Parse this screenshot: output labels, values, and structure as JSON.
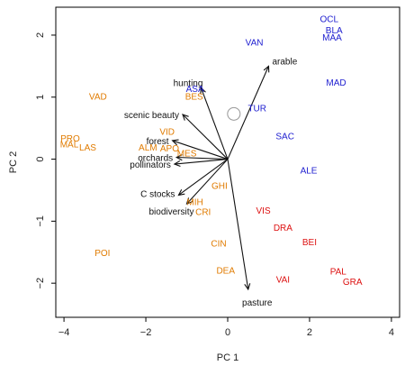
{
  "chart_data": {
    "type": "scatter",
    "xlabel": "PC 1",
    "ylabel": "PC 2",
    "xlim": [
      -4.2,
      4.2
    ],
    "ylim": [
      -2.55,
      2.45
    ],
    "xticks": [
      -4,
      -2,
      0,
      2,
      4
    ],
    "yticks": [
      -2,
      -1,
      0,
      1,
      2
    ],
    "grid": false,
    "colors": {
      "orange": "#e07b00",
      "blue": "#2020d0",
      "red": "#dd1111",
      "arrow": "#111111",
      "circle": "#999999"
    },
    "points": [
      {
        "label": "OCL",
        "x": 2.48,
        "y": 2.27,
        "color": "blue"
      },
      {
        "label": "BLA",
        "x": 2.6,
        "y": 2.09,
        "color": "blue"
      },
      {
        "label": "MAA",
        "x": 2.55,
        "y": 1.97,
        "color": "blue"
      },
      {
        "label": "VAN",
        "x": 0.65,
        "y": 1.89,
        "color": "blue"
      },
      {
        "label": "MAD",
        "x": 2.65,
        "y": 1.24,
        "color": "blue"
      },
      {
        "label": "ASA",
        "x": -0.8,
        "y": 1.14,
        "color": "blue"
      },
      {
        "label": "TUR",
        "x": 0.72,
        "y": 0.83,
        "color": "blue"
      },
      {
        "label": "SAC",
        "x": 1.4,
        "y": 0.38,
        "color": "blue"
      },
      {
        "label": "ALE",
        "x": 1.98,
        "y": -0.17,
        "color": "blue"
      },
      {
        "label": "VAD",
        "x": -3.17,
        "y": 1.02,
        "color": "orange"
      },
      {
        "label": "BES",
        "x": -0.82,
        "y": 1.02,
        "color": "orange"
      },
      {
        "label": "PRO",
        "x": -3.85,
        "y": 0.34,
        "color": "orange"
      },
      {
        "label": "MAL",
        "x": -3.87,
        "y": 0.25,
        "color": "orange"
      },
      {
        "label": "LAS",
        "x": -3.42,
        "y": 0.2,
        "color": "orange"
      },
      {
        "label": "VID",
        "x": -1.48,
        "y": 0.45,
        "color": "orange"
      },
      {
        "label": "ALM",
        "x": -1.95,
        "y": 0.2,
        "color": "orange"
      },
      {
        "label": "APO",
        "x": -1.42,
        "y": 0.18,
        "color": "orange"
      },
      {
        "label": "MES",
        "x": -1.0,
        "y": 0.1,
        "color": "orange"
      },
      {
        "label": "GHI",
        "x": -0.2,
        "y": -0.42,
        "color": "orange"
      },
      {
        "label": "MIH",
        "x": -0.8,
        "y": -0.68,
        "color": "orange"
      },
      {
        "label": "CRI",
        "x": -0.6,
        "y": -0.84,
        "color": "orange"
      },
      {
        "label": "CIN",
        "x": -0.22,
        "y": -1.35,
        "color": "orange"
      },
      {
        "label": "POI",
        "x": -3.06,
        "y": -1.5,
        "color": "orange"
      },
      {
        "label": "DEA",
        "x": -0.05,
        "y": -1.79,
        "color": "orange"
      },
      {
        "label": "VIS",
        "x": 0.87,
        "y": -0.82,
        "color": "red"
      },
      {
        "label": "DRA",
        "x": 1.35,
        "y": -1.1,
        "color": "red"
      },
      {
        "label": "BEI",
        "x": 2.0,
        "y": -1.33,
        "color": "red"
      },
      {
        "label": "PAL",
        "x": 2.7,
        "y": -1.8,
        "color": "red"
      },
      {
        "label": "GRA",
        "x": 3.05,
        "y": -1.97,
        "color": "red"
      },
      {
        "label": "VAI",
        "x": 1.35,
        "y": -1.93,
        "color": "red"
      }
    ],
    "loadings": [
      {
        "label": "arable",
        "x": 1.0,
        "y": 1.5
      },
      {
        "label": "hunting",
        "x": -0.65,
        "y": 1.15
      },
      {
        "label": "scenic beauty",
        "x": -1.1,
        "y": 0.72
      },
      {
        "label": "forest",
        "x": -1.35,
        "y": 0.3
      },
      {
        "label": "orchards",
        "x": -1.25,
        "y": 0.03
      },
      {
        "label": "pollinators",
        "x": -1.3,
        "y": -0.08
      },
      {
        "label": "C stocks",
        "x": -1.2,
        "y": -0.58
      },
      {
        "label": "biodiversity",
        "x": -1.0,
        "y": -0.72
      },
      {
        "label": "pasture",
        "x": 0.5,
        "y": -2.1
      }
    ],
    "circle_marker": {
      "x": 0.15,
      "y": 0.73
    }
  }
}
